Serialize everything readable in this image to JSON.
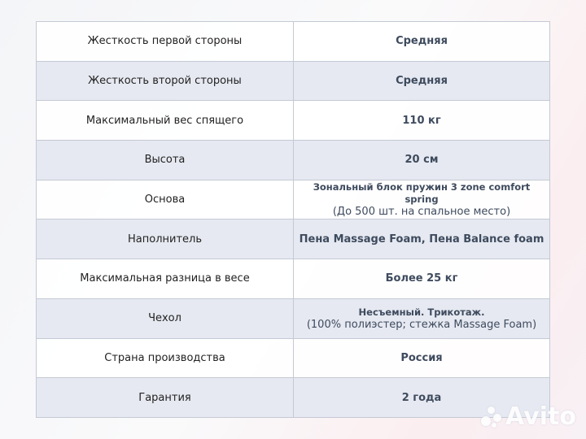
{
  "rows": [
    {
      "label": "Жесткость первой стороны",
      "value": "Средняя"
    },
    {
      "label": "Жесткость второй стороны",
      "value": "Средняя"
    },
    {
      "label": "Максимальный вес спящего",
      "value": "110 кг"
    },
    {
      "label": "Высота",
      "value": "20 см"
    },
    {
      "label": "Основа",
      "value": "Зональный блок пружин 3 zone comfort spring",
      "sub": "(До 500 шт. на спальное место)"
    },
    {
      "label": "Наполнитель",
      "value": "Пена Massage Foam, Пена Balance foam"
    },
    {
      "label": "Максимальная разница в весе",
      "value": "Более 25 кг"
    },
    {
      "label": "Чехол",
      "value": "Несъемный. Трикотаж.",
      "sub": "(100% полиэстер; стежка Massage Foam)"
    },
    {
      "label": "Страна производства",
      "value": "Россия"
    },
    {
      "label": "Гарантия",
      "value": "2 года"
    }
  ],
  "watermark": "Avito"
}
